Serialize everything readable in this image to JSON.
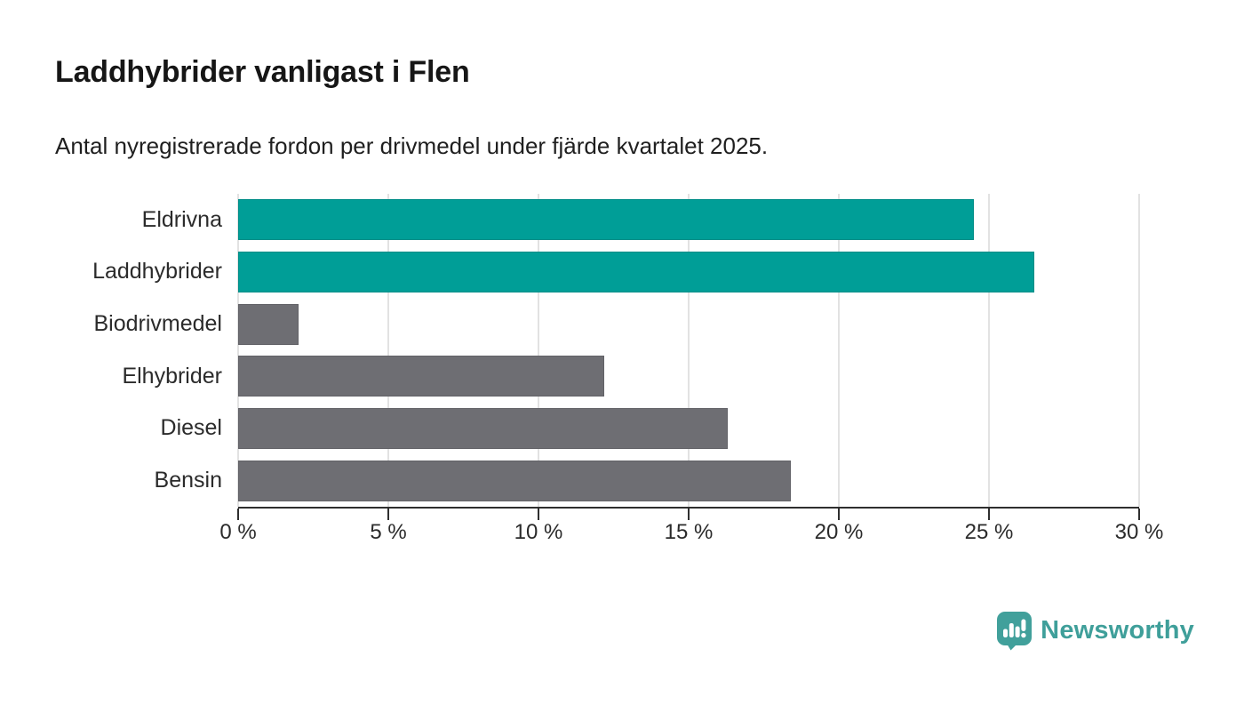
{
  "header": {
    "title": "Laddhybrider vanligast i Flen",
    "subtitle": "Antal nyregistrerade fordon per drivmedel under fjärde kvartalet 2025."
  },
  "chart_data": {
    "type": "bar",
    "orientation": "horizontal",
    "title": "Laddhybrider vanligast i Flen",
    "subtitle": "Antal nyregistrerade fordon per drivmedel under fjärde kvartalet 2025.",
    "categories": [
      "Eldrivna",
      "Laddhybrider",
      "Biodrivmedel",
      "Elhybrider",
      "Diesel",
      "Bensin"
    ],
    "values": [
      24.5,
      26.5,
      2.0,
      12.2,
      16.3,
      18.4
    ],
    "unit": "%",
    "xlim": [
      0,
      30
    ],
    "xticks": [
      0,
      5,
      10,
      15,
      20,
      25,
      30
    ],
    "xtick_labels": [
      "0 %",
      "5 %",
      "10 %",
      "15 %",
      "20 %",
      "25 %",
      "30 %"
    ],
    "bar_colors": [
      "#009e97",
      "#009e97",
      "#6e6e73",
      "#6e6e73",
      "#6e6e73",
      "#6e6e73"
    ],
    "highlight_color": "#009e97",
    "default_color": "#6e6e73",
    "grid": "vertical",
    "legend": "none"
  },
  "footer": {
    "brand": "Newsworthy",
    "brand_color": "#3f9f9a",
    "logo_icon": "newsworthy-speech-bubble-chart-icon",
    "logo_color": "#41a09b"
  }
}
